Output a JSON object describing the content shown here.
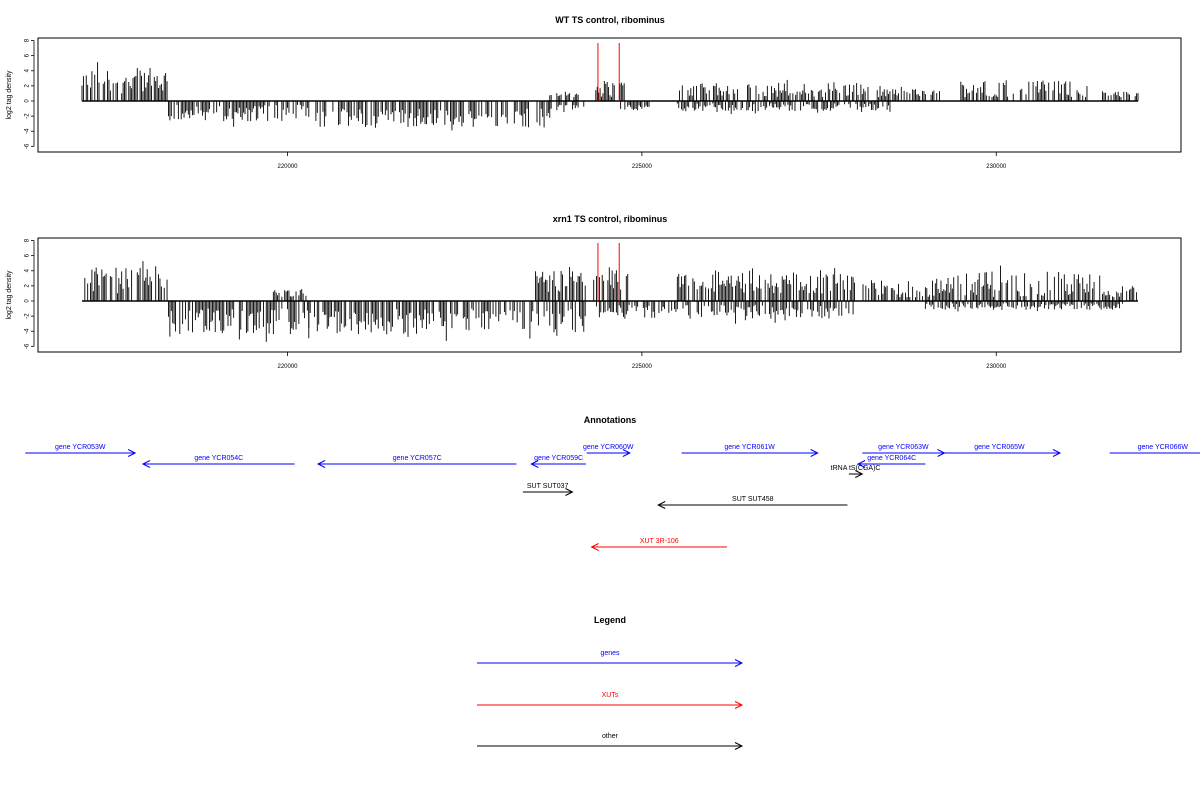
{
  "colors": {
    "gene": "#0000ff",
    "xut": "#ff0000",
    "other": "#000000",
    "marker": "#ff0000",
    "axis": "#000000"
  },
  "chart_data": [
    {
      "type": "bar",
      "title": "WT TS control, ribominus",
      "ylabel": "log2 tag density",
      "xlim": [
        216500,
        232300
      ],
      "ylim": [
        -6,
        8
      ],
      "yticks": [
        "-6",
        "-4",
        "-2",
        "0",
        "2",
        "4",
        "6",
        "8"
      ],
      "xticks": [
        "220000",
        "225000",
        "230000"
      ],
      "markers_x": [
        224380,
        224680
      ],
      "plus_regions": [
        {
          "start": 217100,
          "end": 218300,
          "min": 1.0,
          "max": 5.5
        },
        {
          "start": 223700,
          "end": 224100,
          "min": 0.5,
          "max": 1.5
        },
        {
          "start": 224350,
          "end": 224750,
          "min": 0.5,
          "max": 3.5
        },
        {
          "start": 225450,
          "end": 228200,
          "min": 0.5,
          "max": 3.0
        },
        {
          "start": 228300,
          "end": 229200,
          "min": 0.5,
          "max": 2.0
        },
        {
          "start": 229500,
          "end": 231300,
          "min": 0.5,
          "max": 3.5
        },
        {
          "start": 231500,
          "end": 232000,
          "min": 0.5,
          "max": 1.5
        }
      ],
      "minus_regions": [
        {
          "start": 218300,
          "end": 220300,
          "min": 0.5,
          "max": 3.5
        },
        {
          "start": 220400,
          "end": 223700,
          "min": 1.0,
          "max": 4.5
        },
        {
          "start": 223700,
          "end": 224200,
          "min": 0.5,
          "max": 1.5
        },
        {
          "start": 224700,
          "end": 225100,
          "min": 0.5,
          "max": 1.5
        },
        {
          "start": 225500,
          "end": 228500,
          "min": 0.3,
          "max": 1.8
        }
      ]
    },
    {
      "type": "bar",
      "title": "xrn1 TS control, ribominus",
      "ylabel": "log2 tag density",
      "xlim": [
        216500,
        232300
      ],
      "ylim": [
        -6,
        8
      ],
      "yticks": [
        "-6",
        "-4",
        "-2",
        "0",
        "2",
        "4",
        "6",
        "8"
      ],
      "xticks": [
        "220000",
        "225000",
        "230000"
      ],
      "markers_x": [
        224380,
        224680
      ],
      "plus_regions": [
        {
          "start": 217100,
          "end": 218300,
          "min": 1.0,
          "max": 5.5
        },
        {
          "start": 219800,
          "end": 220300,
          "min": 0.5,
          "max": 2.0
        },
        {
          "start": 223500,
          "end": 224200,
          "min": 1.0,
          "max": 5.0
        },
        {
          "start": 224300,
          "end": 224800,
          "min": 1.5,
          "max": 5.0
        },
        {
          "start": 225500,
          "end": 228000,
          "min": 1.0,
          "max": 4.5
        },
        {
          "start": 228100,
          "end": 229300,
          "min": 0.5,
          "max": 3.5
        },
        {
          "start": 229300,
          "end": 231500,
          "min": 0.5,
          "max": 5.0
        },
        {
          "start": 231500,
          "end": 232000,
          "min": 0.5,
          "max": 2.5
        }
      ],
      "minus_regions": [
        {
          "start": 218300,
          "end": 220300,
          "min": 1.0,
          "max": 5.5
        },
        {
          "start": 220300,
          "end": 224200,
          "min": 1.0,
          "max": 5.5
        },
        {
          "start": 224300,
          "end": 225300,
          "min": 0.5,
          "max": 2.5
        },
        {
          "start": 225300,
          "end": 228000,
          "min": 0.5,
          "max": 3.0
        },
        {
          "start": 229000,
          "end": 231800,
          "min": 0.3,
          "max": 1.5
        }
      ]
    }
  ],
  "annotations": {
    "title": "Annotations",
    "items": [
      {
        "label": "gene YCR053W",
        "type": "gene",
        "start": 216300,
        "end": 217850,
        "dir": "right",
        "row": 0
      },
      {
        "label": "gene YCR054C",
        "type": "gene",
        "start": 217960,
        "end": 220100,
        "dir": "left",
        "row": 1
      },
      {
        "label": "gene YCR057C",
        "type": "gene",
        "start": 220430,
        "end": 223230,
        "dir": "left",
        "row": 1
      },
      {
        "label": "gene YCR059C",
        "type": "gene",
        "start": 223440,
        "end": 224210,
        "dir": "left",
        "row": 1
      },
      {
        "label": "gene YCR060W",
        "type": "gene",
        "start": 224220,
        "end": 224830,
        "dir": "right",
        "row": 0
      },
      {
        "label": "gene YCR061W",
        "type": "gene",
        "start": 225560,
        "end": 227480,
        "dir": "right",
        "row": 0
      },
      {
        "label": "gene YCR063W",
        "type": "gene",
        "start": 228110,
        "end": 229270,
        "dir": "right",
        "row": 0
      },
      {
        "label": "gene YCR064C",
        "type": "gene",
        "start": 228050,
        "end": 229000,
        "dir": "left",
        "row": 1
      },
      {
        "label": "tRNA tS(CGA)C",
        "type": "other",
        "start": 227920,
        "end": 228110,
        "dir": "right",
        "row": 2
      },
      {
        "label": "gene YCR065W",
        "type": "gene",
        "start": 229190,
        "end": 230900,
        "dir": "right",
        "row": 0
      },
      {
        "label": "gene YCR066W",
        "type": "gene",
        "start": 231600,
        "end": 233100,
        "dir": "right",
        "row": 0
      },
      {
        "label": "SUT SUT037",
        "type": "other",
        "start": 223320,
        "end": 224020,
        "dir": "right",
        "row": 3
      },
      {
        "label": "SUT SUT458",
        "type": "other",
        "start": 225230,
        "end": 227900,
        "dir": "left",
        "row": 4
      },
      {
        "label": "XUT 3R-106",
        "type": "xut",
        "start": 224290,
        "end": 226200,
        "dir": "left",
        "row": 5
      }
    ]
  },
  "legend": {
    "title": "Legend",
    "items": [
      {
        "label": "genes",
        "type": "gene"
      },
      {
        "label": "XUTs",
        "type": "xut"
      },
      {
        "label": "other",
        "type": "other"
      }
    ]
  }
}
